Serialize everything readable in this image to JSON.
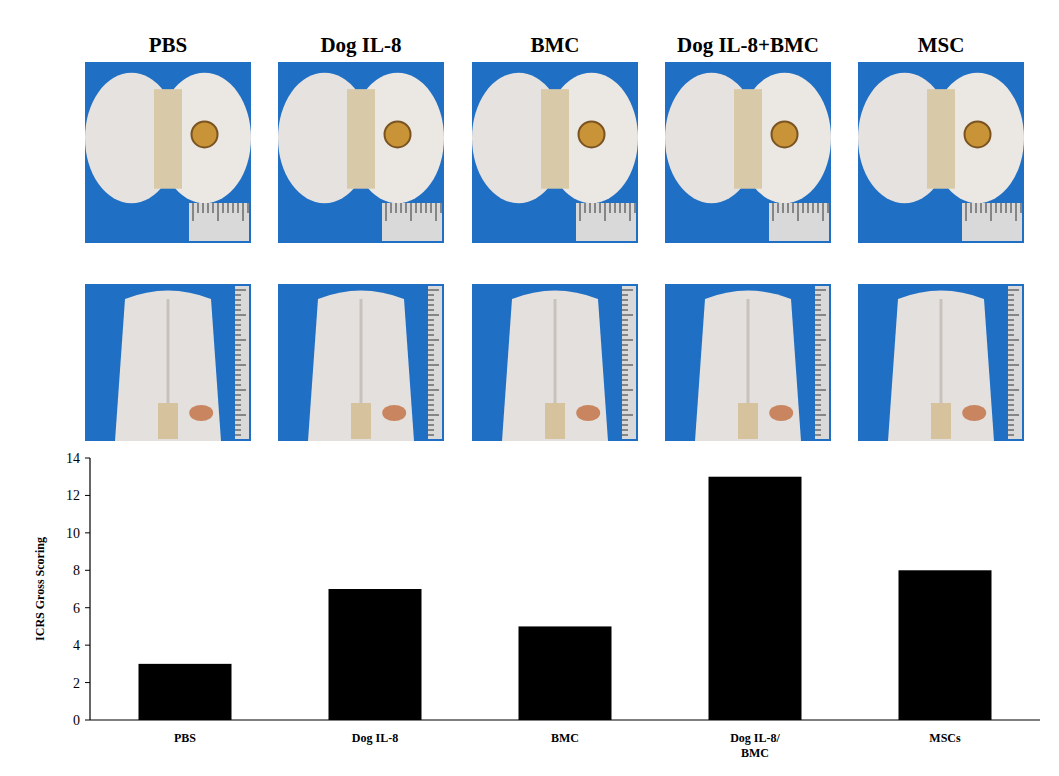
{
  "photo_labels": [
    "PBS",
    "Dog IL-8",
    "BMC",
    "Dog IL-8+BMC",
    "MSC"
  ],
  "chart_data": {
    "type": "bar",
    "y_label": "ICRS Gross Scoring",
    "categories": [
      "PBS",
      "Dog IL-8",
      "BMC",
      "Dog IL-8/ BMC",
      "MSCs"
    ],
    "values": [
      3,
      7,
      5,
      13,
      8
    ],
    "color": "#000000",
    "ylim": [
      0,
      14
    ],
    "yticks": [
      0,
      2,
      4,
      6,
      8,
      10,
      12,
      14
    ],
    "grid": false
  }
}
